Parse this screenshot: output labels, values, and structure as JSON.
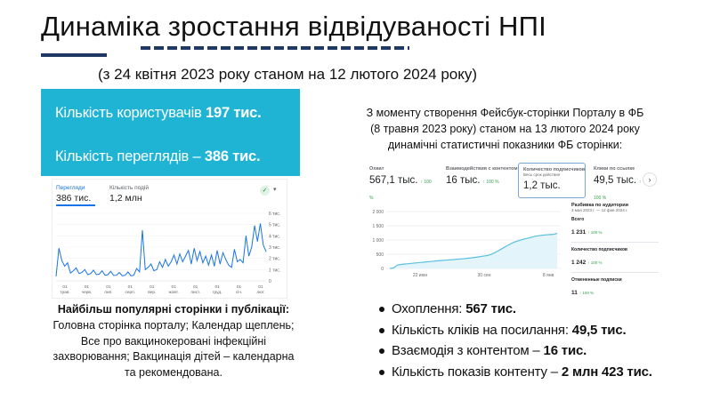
{
  "title": "Динаміка зростання відвідуваності НПІ",
  "subtitle": "(з 24 квітня 2023 року станом на 12 лютого 2024 року)",
  "colors": {
    "accent": "#20b4d4",
    "navy": "#1f3864",
    "chart_blue": "#1a73e8",
    "fb_line": "#5bc0de"
  },
  "stats_box": {
    "users_label": "Кількість користувачів",
    "users_value": "197 тис.",
    "views_label": "Кількість переглядів –",
    "views_value": "386 тис."
  },
  "ga_chart": {
    "tab1_label": "Перегляди",
    "tab1_value": "386 тис.",
    "tab2_label": "Кількість подій",
    "tab2_value": "1,2 млн",
    "status_icon": "check-circle-icon",
    "chart_data": {
      "type": "line",
      "x_ticks": [
        "01 трав.",
        "01 черв.",
        "01 лип.",
        "01 серп.",
        "01 вер.",
        "01 жовт.",
        "01 лист.",
        "01 груд.",
        "01 січ.",
        "01 лют."
      ],
      "y_ticks": [
        "0",
        "1 тис.",
        "2 тис.",
        "3 тис.",
        "4 тис.",
        "5 тис.",
        "6 тис."
      ],
      "ylim": [
        0,
        6000
      ],
      "series": [
        {
          "values": [
            400,
            2900,
            1800,
            1300,
            1600,
            700,
            900,
            1150,
            650,
            750,
            1000,
            550,
            650,
            950,
            550,
            600,
            900,
            500,
            550,
            850,
            480,
            500,
            750,
            450,
            500,
            800,
            450,
            500,
            1100,
            800,
            4500,
            1000,
            1200,
            1500,
            900,
            1000,
            1700,
            1200,
            1900,
            1300,
            1700,
            2300,
            1500,
            2400,
            1700,
            2200,
            2700,
            1500,
            2900,
            1800,
            2600,
            1600,
            2200,
            1400,
            2300,
            1300,
            2700,
            1500,
            2500,
            1900,
            1400,
            1200,
            2800,
            1700,
            1900,
            1600,
            4000,
            2200,
            3000,
            4900,
            3500,
            5100,
            3200,
            2600
          ]
        }
      ]
    }
  },
  "left_section": {
    "heading": "Найбільш популярні сторінки і публікації:",
    "lines": [
      "Головна сторінка порталу; Календар щеплень;",
      "Все про вакцинокеровані інфекційні",
      "захворювання; Вакцинація дітей – календарна",
      "та рекомендована."
    ]
  },
  "right_section": {
    "heading_lines": [
      "З моменту створення Фейсбук-сторінки Порталу в ФБ",
      "(8 травня 2023 року) станом на 13 лютого 2024 року",
      "динамічні статистичні показники ФБ сторінки:"
    ]
  },
  "fb_insights": {
    "metrics": [
      {
        "name": "Охват",
        "sub": "",
        "value": "567,1 тыс.",
        "change": "↑ 100 %"
      },
      {
        "name": "Взаимодействия с контентом",
        "sub": "",
        "value": "16 тыс.",
        "change": "↑ 100 %"
      },
      {
        "name": "Количество подписчиков",
        "sub": "Весь срок действия",
        "value": "1,2 тыс.",
        "change": ""
      },
      {
        "name": "Клики по ссылке",
        "sub": "",
        "value": "49,5 тыс.",
        "change": "↑ 100 %"
      }
    ],
    "next_icon": "chevron-right-icon",
    "breakdown": {
      "title": "Разбивка по аудитории",
      "range": "3 мая 2023 г. — 12 фев 2024 г.",
      "total_label": "Всего",
      "total_value": "1 231",
      "total_change": "↑ 100 %",
      "followers_label": "Количество подписчиков",
      "followers_value": "1 242",
      "followers_change": "↑ 100 %",
      "unfollows_label": "Отмененные подписки",
      "unfollows_value": "11",
      "unfollows_change": "↑ 100 %"
    },
    "chart_data": {
      "type": "area",
      "y_ticks": [
        "2 000",
        "1 500",
        "1 000",
        "500",
        "0"
      ],
      "x_ticks": [
        "22 июн",
        "30 сен",
        "8 янв"
      ],
      "ylim": [
        0,
        2000
      ],
      "series": [
        {
          "values": [
            0,
            15,
            120,
            140,
            155,
            165,
            180,
            195,
            210,
            220,
            235,
            245,
            255,
            270,
            280,
            290,
            300,
            310,
            325,
            335,
            345,
            360,
            375,
            390,
            410,
            430,
            450,
            480,
            540,
            610,
            680,
            760,
            830,
            900,
            950,
            990,
            1030,
            1060,
            1090,
            1130,
            1150,
            1170,
            1180,
            1190,
            1200,
            1230
          ]
        }
      ]
    }
  },
  "bullets": [
    {
      "label": "Охоплення:",
      "value": "567 тис."
    },
    {
      "label": "Кількість кліків на посилання:",
      "value": "49,5 тис."
    },
    {
      "label": "Взаємодія з контентом –",
      "value": "16 тис."
    },
    {
      "label": "Кількість показів контенту –",
      "value": "2 млн 423 тис."
    }
  ]
}
